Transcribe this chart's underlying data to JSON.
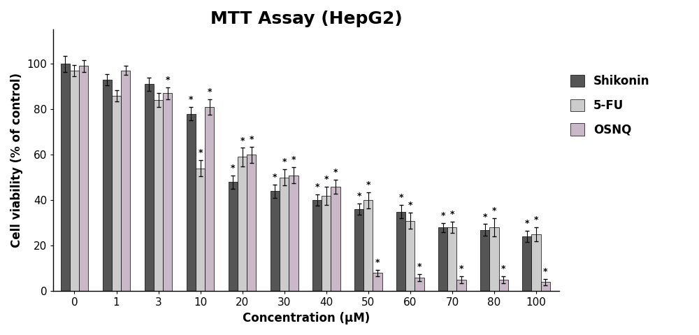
{
  "title": "MTT Assay (HepG2)",
  "xlabel": "Concentration (μM)",
  "ylabel": "Cell viability (% of control)",
  "concentrations": [
    0,
    1,
    3,
    10,
    20,
    30,
    40,
    50,
    60,
    70,
    80,
    100
  ],
  "shikonin": [
    100,
    93,
    91,
    78,
    48,
    44,
    40,
    36,
    35,
    28,
    27,
    24
  ],
  "shikonin_err": [
    3.5,
    2.5,
    3.0,
    3.0,
    3.0,
    3.0,
    2.5,
    2.5,
    3.0,
    2.0,
    2.5,
    2.5
  ],
  "fu5": [
    97,
    86,
    84,
    54,
    59,
    50,
    42,
    40,
    31,
    28,
    28,
    25
  ],
  "fu5_err": [
    2.5,
    2.5,
    3.0,
    3.5,
    4.0,
    3.5,
    4.0,
    3.5,
    3.5,
    2.5,
    4.0,
    3.0
  ],
  "osnq": [
    99,
    97,
    87,
    81,
    60,
    51,
    46,
    8,
    6,
    5,
    5,
    4
  ],
  "osnq_err": [
    2.5,
    2.0,
    2.5,
    3.5,
    3.5,
    3.5,
    3.0,
    1.5,
    1.5,
    1.5,
    1.5,
    1.5
  ],
  "color_shikonin": "#555555",
  "color_fu5": "#cccccc",
  "color_osnq": "#c9b8c8",
  "bar_width": 0.22,
  "ylim": [
    0,
    115
  ],
  "yticks": [
    0,
    20,
    40,
    60,
    80,
    100
  ],
  "title_fontsize": 18,
  "label_fontsize": 12,
  "tick_fontsize": 11,
  "legend_fontsize": 12,
  "significance_markers": {
    "shikonin": [
      false,
      false,
      false,
      true,
      true,
      true,
      true,
      true,
      true,
      true,
      true,
      true
    ],
    "fu5": [
      false,
      false,
      false,
      true,
      true,
      true,
      true,
      true,
      true,
      true,
      true,
      true
    ],
    "osnq": [
      false,
      false,
      true,
      true,
      true,
      true,
      true,
      true,
      true,
      true,
      true,
      true
    ]
  }
}
